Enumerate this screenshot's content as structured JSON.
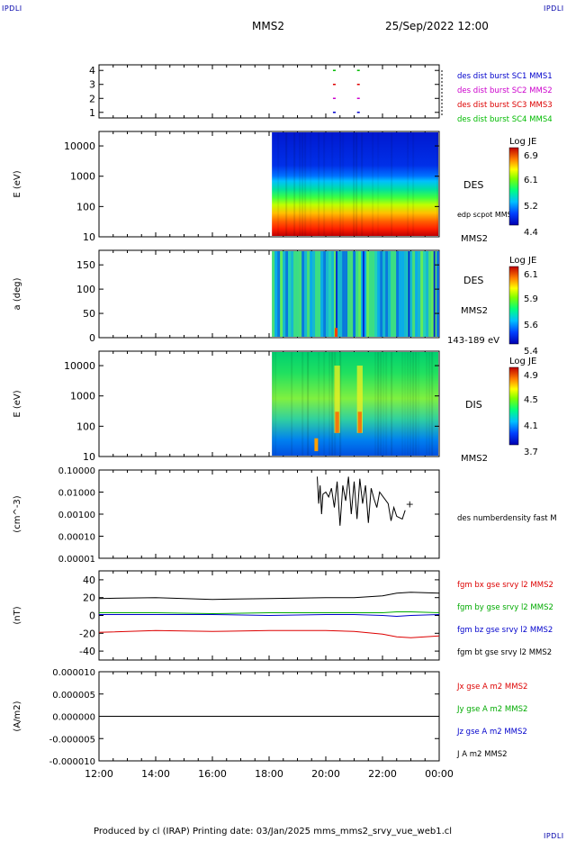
{
  "corners": {
    "tl": "IPDLI",
    "tr": "IPDLI",
    "br": "IPDLI"
  },
  "header": {
    "spacecraft": "MMS2",
    "datetime": "25/Sep/2022 12:00"
  },
  "footer": {
    "text": "Produced by cl (IRAP)   Printing date: 03/Jan/2025   mms_mms2_srvy_vue_web1.cl"
  },
  "time_axis": {
    "labels": [
      "12:00",
      "14:00",
      "16:00",
      "18:00",
      "20:00",
      "22:00",
      "00:00"
    ]
  },
  "colors": {
    "mms1": "#0000cc",
    "mms2": "#cc00cc",
    "mms3": "#dd0000",
    "mms4": "#00bb00",
    "bx": "#dd0000",
    "by": "#00aa00",
    "bz": "#0000cc",
    "bt": "#000000"
  },
  "chart_data": [
    {
      "type": "scatter",
      "panel": "burst",
      "yticks": [
        "1",
        "2",
        "3",
        "4"
      ],
      "legend": [
        "des dist burst SC1 MMS1",
        "des dist burst SC2 MMS2",
        "des dist burst SC3 MMS3",
        "des dist burst SC4 MMS4"
      ],
      "burst_times_hours": [
        20.3,
        21.15
      ],
      "ylim": [
        0.6,
        4.4
      ]
    },
    {
      "type": "heatmap",
      "panel": "des_energy",
      "ylabel": "E (eV)",
      "yscale": "log",
      "yticks": [
        "10",
        "100",
        "1000",
        "10000"
      ],
      "ylim": [
        10,
        30000
      ],
      "data_start_hour": 18.1,
      "right_labels": [
        "DES",
        "edp scpot MMS2",
        "MMS2"
      ],
      "colorbar": {
        "title": "Log JE",
        "ticks": [
          "6.9",
          "6.1",
          "5.2",
          "4.4"
        ]
      }
    },
    {
      "type": "heatmap",
      "panel": "des_pitch",
      "ylabel": "a (deg)",
      "yticks": [
        "0",
        "50",
        "100",
        "150"
      ],
      "ylim": [
        0,
        180
      ],
      "data_start_hour": 18.1,
      "right_labels": [
        "DES",
        "MMS2",
        "143-189 eV"
      ],
      "colorbar": {
        "title": "Log JE",
        "ticks": [
          "6.1",
          "5.9",
          "5.6",
          "5.4"
        ]
      }
    },
    {
      "type": "heatmap",
      "panel": "dis_energy",
      "ylabel": "E (eV)",
      "yscale": "log",
      "yticks": [
        "10",
        "100",
        "1000",
        "10000"
      ],
      "ylim": [
        10,
        30000
      ],
      "data_start_hour": 18.1,
      "right_labels": [
        "DIS",
        "MMS2"
      ],
      "colorbar": {
        "title": "Log JE",
        "ticks": [
          "4.9",
          "4.5",
          "4.1",
          "3.7"
        ]
      }
    },
    {
      "type": "line",
      "panel": "density",
      "ylabel": "(cm^-3)",
      "yscale": "log",
      "yticks": [
        "0.10000",
        "0.01000",
        "0.00100",
        "0.00010",
        "0.00001"
      ],
      "ylim": [
        1e-05,
        0.1
      ],
      "series": [
        {
          "name": "des numberdensity fast M",
          "x": [
            19.7,
            19.75,
            19.8,
            19.85,
            19.9,
            20.0,
            20.1,
            20.2,
            20.3,
            20.4,
            20.5,
            20.6,
            20.7,
            20.8,
            20.9,
            21.0,
            21.1,
            21.2,
            21.3,
            21.4,
            21.5,
            21.6,
            21.7,
            21.8,
            21.9,
            22.2,
            22.3,
            22.4,
            22.5,
            22.7,
            22.8
          ],
          "y": [
            0.05,
            0.003,
            0.02,
            0.001,
            0.008,
            0.01,
            0.006,
            0.015,
            0.002,
            0.03,
            0.0003,
            0.02,
            0.004,
            0.05,
            0.001,
            0.03,
            0.0006,
            0.04,
            0.003,
            0.02,
            0.0004,
            0.015,
            0.005,
            0.002,
            0.01,
            0.003,
            0.0005,
            0.002,
            0.0008,
            0.0006,
            0.0015
          ]
        }
      ]
    },
    {
      "type": "line",
      "panel": "field",
      "ylabel": "(nT)",
      "yticks": [
        "40",
        "20",
        "0",
        "-20",
        "-40"
      ],
      "ylim": [
        -50,
        50
      ],
      "x": [
        12,
        14,
        16,
        18,
        20,
        21,
        22,
        22.5,
        23,
        24
      ],
      "series": [
        {
          "name": "fgm bx gse srvy l2 MMS2",
          "values": [
            -19,
            -17,
            -18,
            -17,
            -17,
            -18,
            -21,
            -24,
            -25,
            -23
          ]
        },
        {
          "name": "fgm by gse srvy l2 MMS2",
          "values": [
            3,
            3,
            2,
            3,
            3,
            3,
            3,
            4,
            4,
            3
          ]
        },
        {
          "name": "fgm bz gse srvy l2 MMS2",
          "values": [
            1,
            1,
            1,
            0,
            1,
            1,
            0,
            -1,
            0,
            1
          ]
        },
        {
          "name": "fgm bt gse srvy l2 MMS2",
          "values": [
            19,
            20,
            18,
            19,
            20,
            20,
            22,
            25,
            26,
            25
          ]
        }
      ]
    },
    {
      "type": "line",
      "panel": "current",
      "ylabel": "(A/m2)",
      "yticks": [
        "0.000010",
        "0.000005",
        "0.000000",
        "-0.000005",
        "-0.000010"
      ],
      "ylim": [
        -1e-05,
        1e-05
      ],
      "series": [
        {
          "name": "Jx gse A m2 MMS2",
          "values": []
        },
        {
          "name": "Jy gse A m2 MMS2",
          "values": []
        },
        {
          "name": "Jz gse A m2 MMS2",
          "values": []
        },
        {
          "name": "J A m2 MMS2",
          "values": [
            0,
            0
          ]
        }
      ]
    }
  ]
}
